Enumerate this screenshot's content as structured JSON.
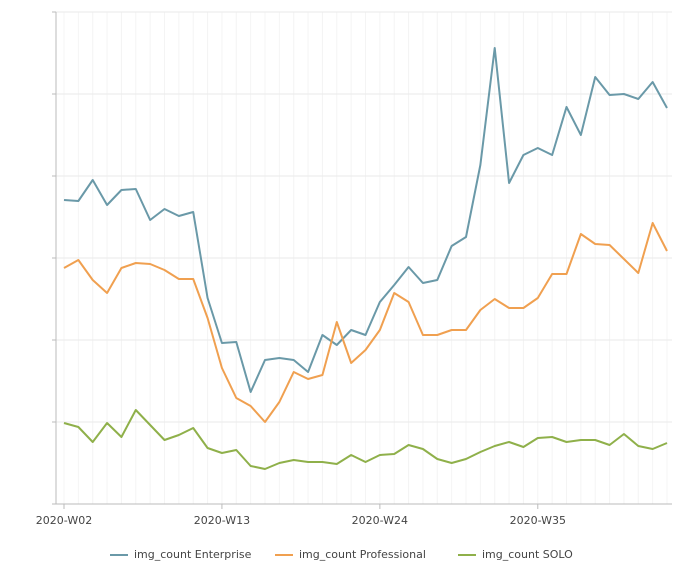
{
  "chart_data": {
    "type": "line",
    "categories": [
      "2020-W02",
      null,
      null,
      null,
      null,
      null,
      null,
      null,
      null,
      null,
      null,
      "2020-W13",
      null,
      null,
      null,
      null,
      null,
      null,
      null,
      null,
      null,
      null,
      "2020-W24",
      null,
      null,
      null,
      null,
      null,
      null,
      null,
      null,
      null,
      null,
      "2020-W35",
      null,
      null,
      null,
      null,
      null,
      null,
      null,
      null,
      null
    ],
    "series": [
      {
        "name": "img_count Enterprise",
        "color": "#6a99a8",
        "values": [
          304,
          303,
          324,
          299,
          314,
          315,
          284,
          295,
          288,
          292,
          206,
          161,
          162,
          112,
          144,
          146,
          144,
          132,
          169,
          159,
          174,
          169,
          202,
          219,
          237,
          221,
          224,
          258,
          267,
          339,
          456,
          321,
          349,
          356,
          349,
          397,
          369,
          427,
          409,
          410,
          405,
          422,
          396
        ]
      },
      {
        "name": "img_count Professional",
        "color": "#f0a050",
        "values": [
          236,
          244,
          224,
          211,
          236,
          241,
          240,
          234,
          225,
          225,
          186,
          136,
          106,
          98,
          82,
          102,
          132,
          125,
          129,
          182,
          141,
          154,
          174,
          211,
          202,
          169,
          169,
          174,
          174,
          194,
          205,
          196,
          196,
          206,
          230,
          230,
          270,
          260,
          259,
          245,
          231,
          281,
          253
        ]
      },
      {
        "name": "img_count SOLO",
        "color": "#8fb04a",
        "values": [
          81,
          77,
          62,
          81,
          67,
          94,
          79,
          64,
          69,
          76,
          56,
          51,
          54,
          38,
          35,
          41,
          44,
          42,
          42,
          40,
          49,
          42,
          49,
          50,
          59,
          55,
          45,
          41,
          45,
          52,
          58,
          62,
          57,
          66,
          67,
          62,
          64,
          64,
          59,
          70,
          58,
          55,
          61
        ]
      }
    ],
    "ylim": [
      0,
      492
    ],
    "yticks": [
      0,
      82,
      164,
      246,
      328,
      410,
      492
    ],
    "grid": true,
    "legend": "bottom"
  }
}
